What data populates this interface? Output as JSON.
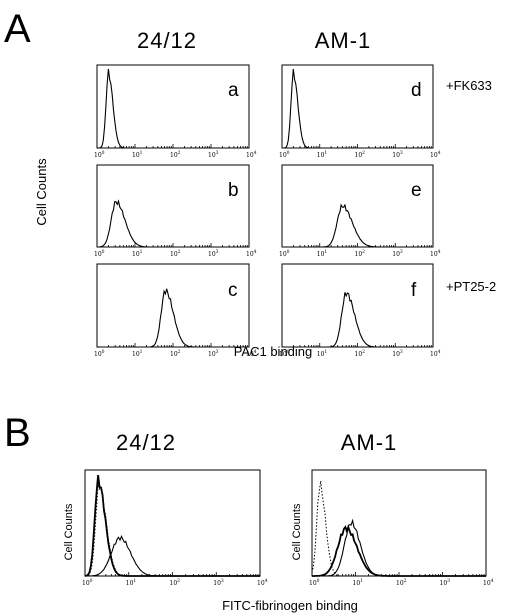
{
  "panel_a": {
    "letter": "A",
    "columns": [
      "24/12",
      "AM-1"
    ],
    "ylabel": "Cell Counts",
    "xlabel": "PAC1   binding",
    "conditions": [
      "+FK633",
      "",
      "+PT25-2"
    ],
    "subpanels": [
      {
        "label": "a",
        "peak_log10": 0.3
      },
      {
        "label": "b",
        "peak_log10": 0.5
      },
      {
        "label": "c",
        "peak_log10": 1.8
      },
      {
        "label": "d",
        "peak_log10": 0.3
      },
      {
        "label": "e",
        "peak_log10": 1.6
      },
      {
        "label": "f",
        "peak_log10": 1.7
      }
    ]
  },
  "panel_b": {
    "letter": "B",
    "columns": [
      "24/12",
      "AM-1"
    ],
    "ylabel": "Cell Counts",
    "xlabel": "FITC-fibrinogen   binding"
  },
  "x_axis": {
    "scale": "log",
    "ticks": [
      "10",
      "10",
      "10",
      "10",
      "10"
    ],
    "exponents": [
      "0",
      "1",
      "2",
      "3",
      "4"
    ]
  },
  "chart_data": [
    {
      "type": "area",
      "panel": "A-a",
      "x_scale": "log",
      "xlim": [
        1,
        10000
      ],
      "series": [
        {
          "peak_x": 2
        }
      ]
    },
    {
      "type": "area",
      "panel": "A-b",
      "x_scale": "log",
      "xlim": [
        1,
        10000
      ],
      "series": [
        {
          "peak_x": 3
        }
      ]
    },
    {
      "type": "area",
      "panel": "A-c",
      "x_scale": "log",
      "xlim": [
        1,
        10000
      ],
      "series": [
        {
          "peak_x": 60
        }
      ]
    },
    {
      "type": "area",
      "panel": "A-d",
      "x_scale": "log",
      "xlim": [
        1,
        10000
      ],
      "series": [
        {
          "peak_x": 2
        }
      ]
    },
    {
      "type": "area",
      "panel": "A-e",
      "x_scale": "log",
      "xlim": [
        1,
        10000
      ],
      "series": [
        {
          "peak_x": 40
        }
      ]
    },
    {
      "type": "area",
      "panel": "A-f",
      "x_scale": "log",
      "xlim": [
        1,
        10000
      ],
      "series": [
        {
          "peak_x": 50
        }
      ]
    },
    {
      "type": "area",
      "panel": "B-24/12",
      "x_scale": "log",
      "xlim": [
        1,
        10000
      ],
      "series": [
        {
          "peak_x": 2
        },
        {
          "peak_x": 2
        },
        {
          "peak_x": 6
        }
      ]
    },
    {
      "type": "area",
      "panel": "B-AM-1",
      "x_scale": "log",
      "xlim": [
        1,
        10000
      ],
      "series": [
        {
          "peak_x": 1.5
        },
        {
          "peak_x": 6
        },
        {
          "peak_x": 8
        }
      ]
    }
  ]
}
